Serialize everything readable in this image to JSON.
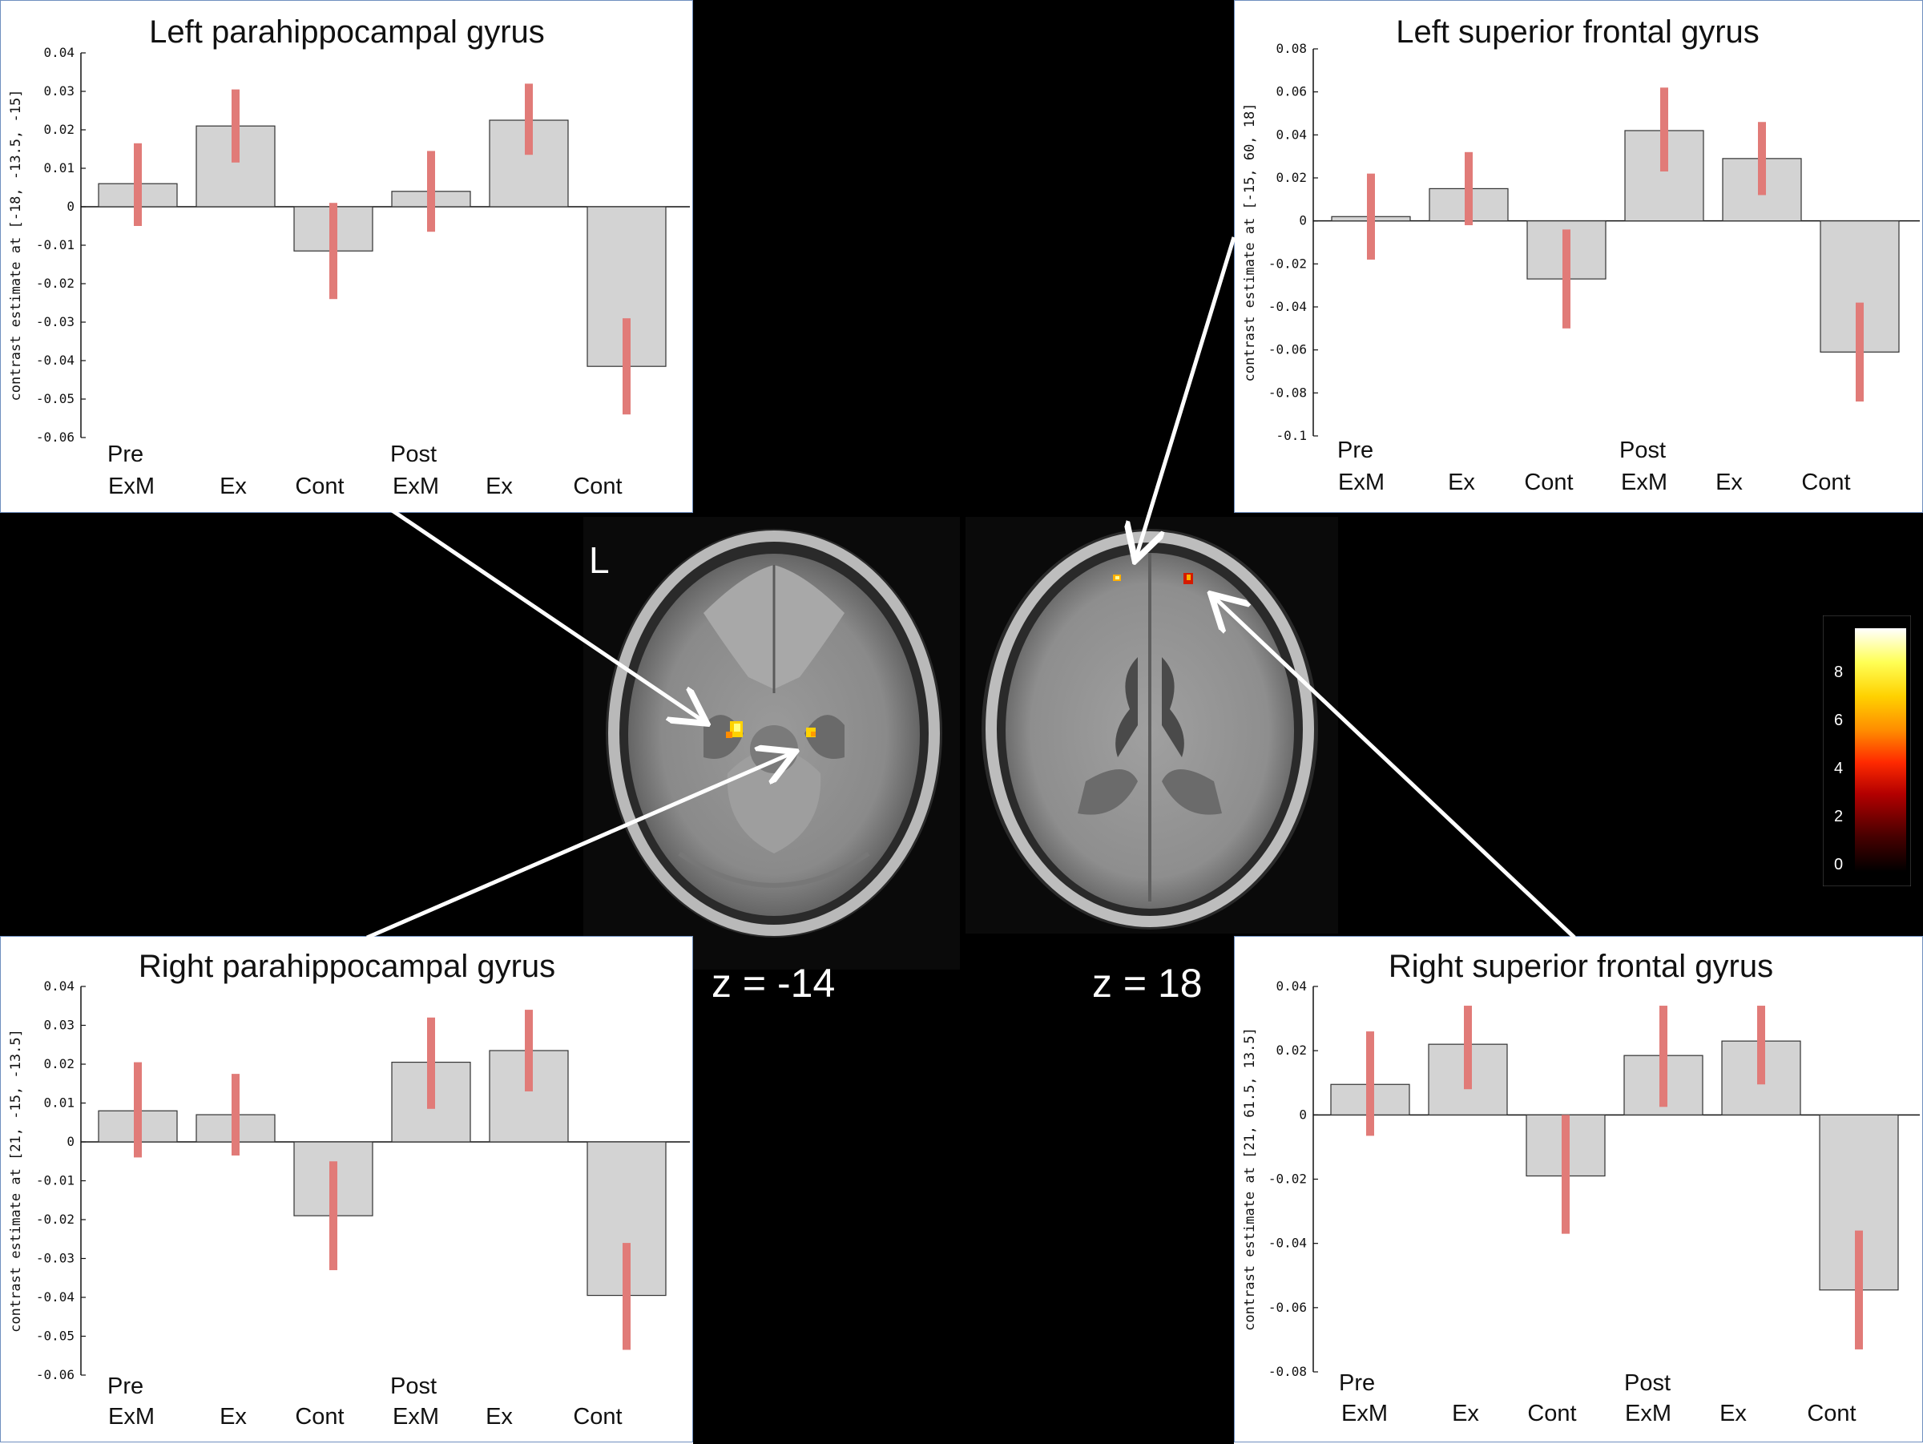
{
  "figure": {
    "hemisphere_label": "L",
    "slice_labels": [
      "z = -14",
      "z = 18"
    ],
    "colorbar": {
      "ticks": [
        "8",
        "6",
        "4",
        "2",
        "0"
      ],
      "colormap": [
        "#000000",
        "#4a0000",
        "#b30000",
        "#ff2a00",
        "#ff8c00",
        "#ffd100",
        "#ffff55",
        "#ffffff"
      ]
    },
    "colors": {
      "bar_fill": "#d3d3d3",
      "error_bar": "#e17b78",
      "panel_border": "#6f8fbf",
      "arrow": "#ffffff"
    }
  },
  "chart_data": [
    {
      "type": "bar",
      "title": "Left parahippocampal gyrus",
      "ylabel": "contrast estimate at [-18, -13.5, -15]",
      "ylim": [
        -0.06,
        0.04
      ],
      "yticks": [
        "0.04",
        "0.03",
        "0.02",
        "0.01",
        "0",
        "-0.01",
        "-0.02",
        "-0.03",
        "-0.04",
        "-0.05",
        "-0.06"
      ],
      "yticks_values": [
        0.04,
        0.03,
        0.02,
        0.01,
        0,
        -0.01,
        -0.02,
        -0.03,
        -0.04,
        -0.05,
        -0.06
      ],
      "group_labels": [
        "Pre",
        "Post"
      ],
      "categories": [
        "ExM",
        "Ex",
        "Cont",
        "ExM",
        "Ex",
        "Cont"
      ],
      "values": [
        0.006,
        0.021,
        -0.0115,
        0.004,
        0.0225,
        -0.0415
      ],
      "error_low": [
        -0.005,
        0.0115,
        -0.024,
        -0.0065,
        0.0135,
        -0.054
      ],
      "error_high": [
        0.0165,
        0.0305,
        0.001,
        0.0145,
        0.032,
        -0.029
      ]
    },
    {
      "type": "bar",
      "title": "Left superior frontal gyrus",
      "ylabel": "contrast estimate at [-15, 60, 18]",
      "ylim": [
        -0.1,
        0.08
      ],
      "yticks": [
        "0.08",
        "0.06",
        "0.04",
        "0.02",
        "0",
        "-0.02",
        "-0.04",
        "-0.06",
        "-0.08",
        "-0.1"
      ],
      "yticks_values": [
        0.08,
        0.06,
        0.04,
        0.02,
        0,
        -0.02,
        -0.04,
        -0.06,
        -0.08,
        -0.1
      ],
      "group_labels": [
        "Pre",
        "Post"
      ],
      "categories": [
        "ExM",
        "Ex",
        "Cont",
        "ExM",
        "Ex",
        "Cont"
      ],
      "values": [
        0.002,
        0.015,
        -0.027,
        0.042,
        0.029,
        -0.061
      ],
      "error_low": [
        -0.018,
        -0.002,
        -0.05,
        0.023,
        0.012,
        -0.084
      ],
      "error_high": [
        0.022,
        0.032,
        -0.004,
        0.062,
        0.046,
        -0.038
      ]
    },
    {
      "type": "bar",
      "title": "Right parahippocampal gyrus",
      "ylabel": "contrast estimate at [21, -15, -13.5]",
      "ylim": [
        -0.06,
        0.04
      ],
      "yticks": [
        "0.04",
        "0.03",
        "0.02",
        "0.01",
        "0",
        "-0.01",
        "-0.02",
        "-0.03",
        "-0.04",
        "-0.05",
        "-0.06"
      ],
      "yticks_values": [
        0.04,
        0.03,
        0.02,
        0.01,
        0,
        -0.01,
        -0.02,
        -0.03,
        -0.04,
        -0.05,
        -0.06
      ],
      "group_labels": [
        "Pre",
        "Post"
      ],
      "categories": [
        "ExM",
        "Ex",
        "Cont",
        "ExM",
        "Ex",
        "Cont"
      ],
      "values": [
        0.008,
        0.007,
        -0.019,
        0.0205,
        0.0235,
        -0.0395
      ],
      "error_low": [
        -0.004,
        -0.0035,
        -0.033,
        0.0085,
        0.013,
        -0.0535
      ],
      "error_high": [
        0.0205,
        0.0175,
        -0.005,
        0.032,
        0.034,
        -0.026
      ]
    },
    {
      "type": "bar",
      "title": "Right superior frontal gyrus",
      "ylabel": "contrast estimate at [21, 61.5, 13.5]",
      "ylim": [
        -0.08,
        0.04
      ],
      "yticks": [
        "0.04",
        "0.02",
        "0",
        "-0.02",
        "-0.04",
        "-0.06",
        "-0.08"
      ],
      "yticks_values": [
        0.04,
        0.02,
        0,
        -0.02,
        -0.04,
        -0.06,
        -0.08
      ],
      "group_labels": [
        "Pre",
        "Post"
      ],
      "categories": [
        "ExM",
        "Ex",
        "Cont",
        "ExM",
        "Ex",
        "Cont"
      ],
      "values": [
        0.0095,
        0.022,
        -0.019,
        0.0185,
        0.023,
        -0.0545
      ],
      "error_low": [
        -0.0065,
        0.008,
        -0.037,
        0.0025,
        0.0095,
        -0.073
      ],
      "error_high": [
        0.026,
        0.034,
        0.0,
        0.034,
        0.034,
        -0.036
      ]
    }
  ]
}
